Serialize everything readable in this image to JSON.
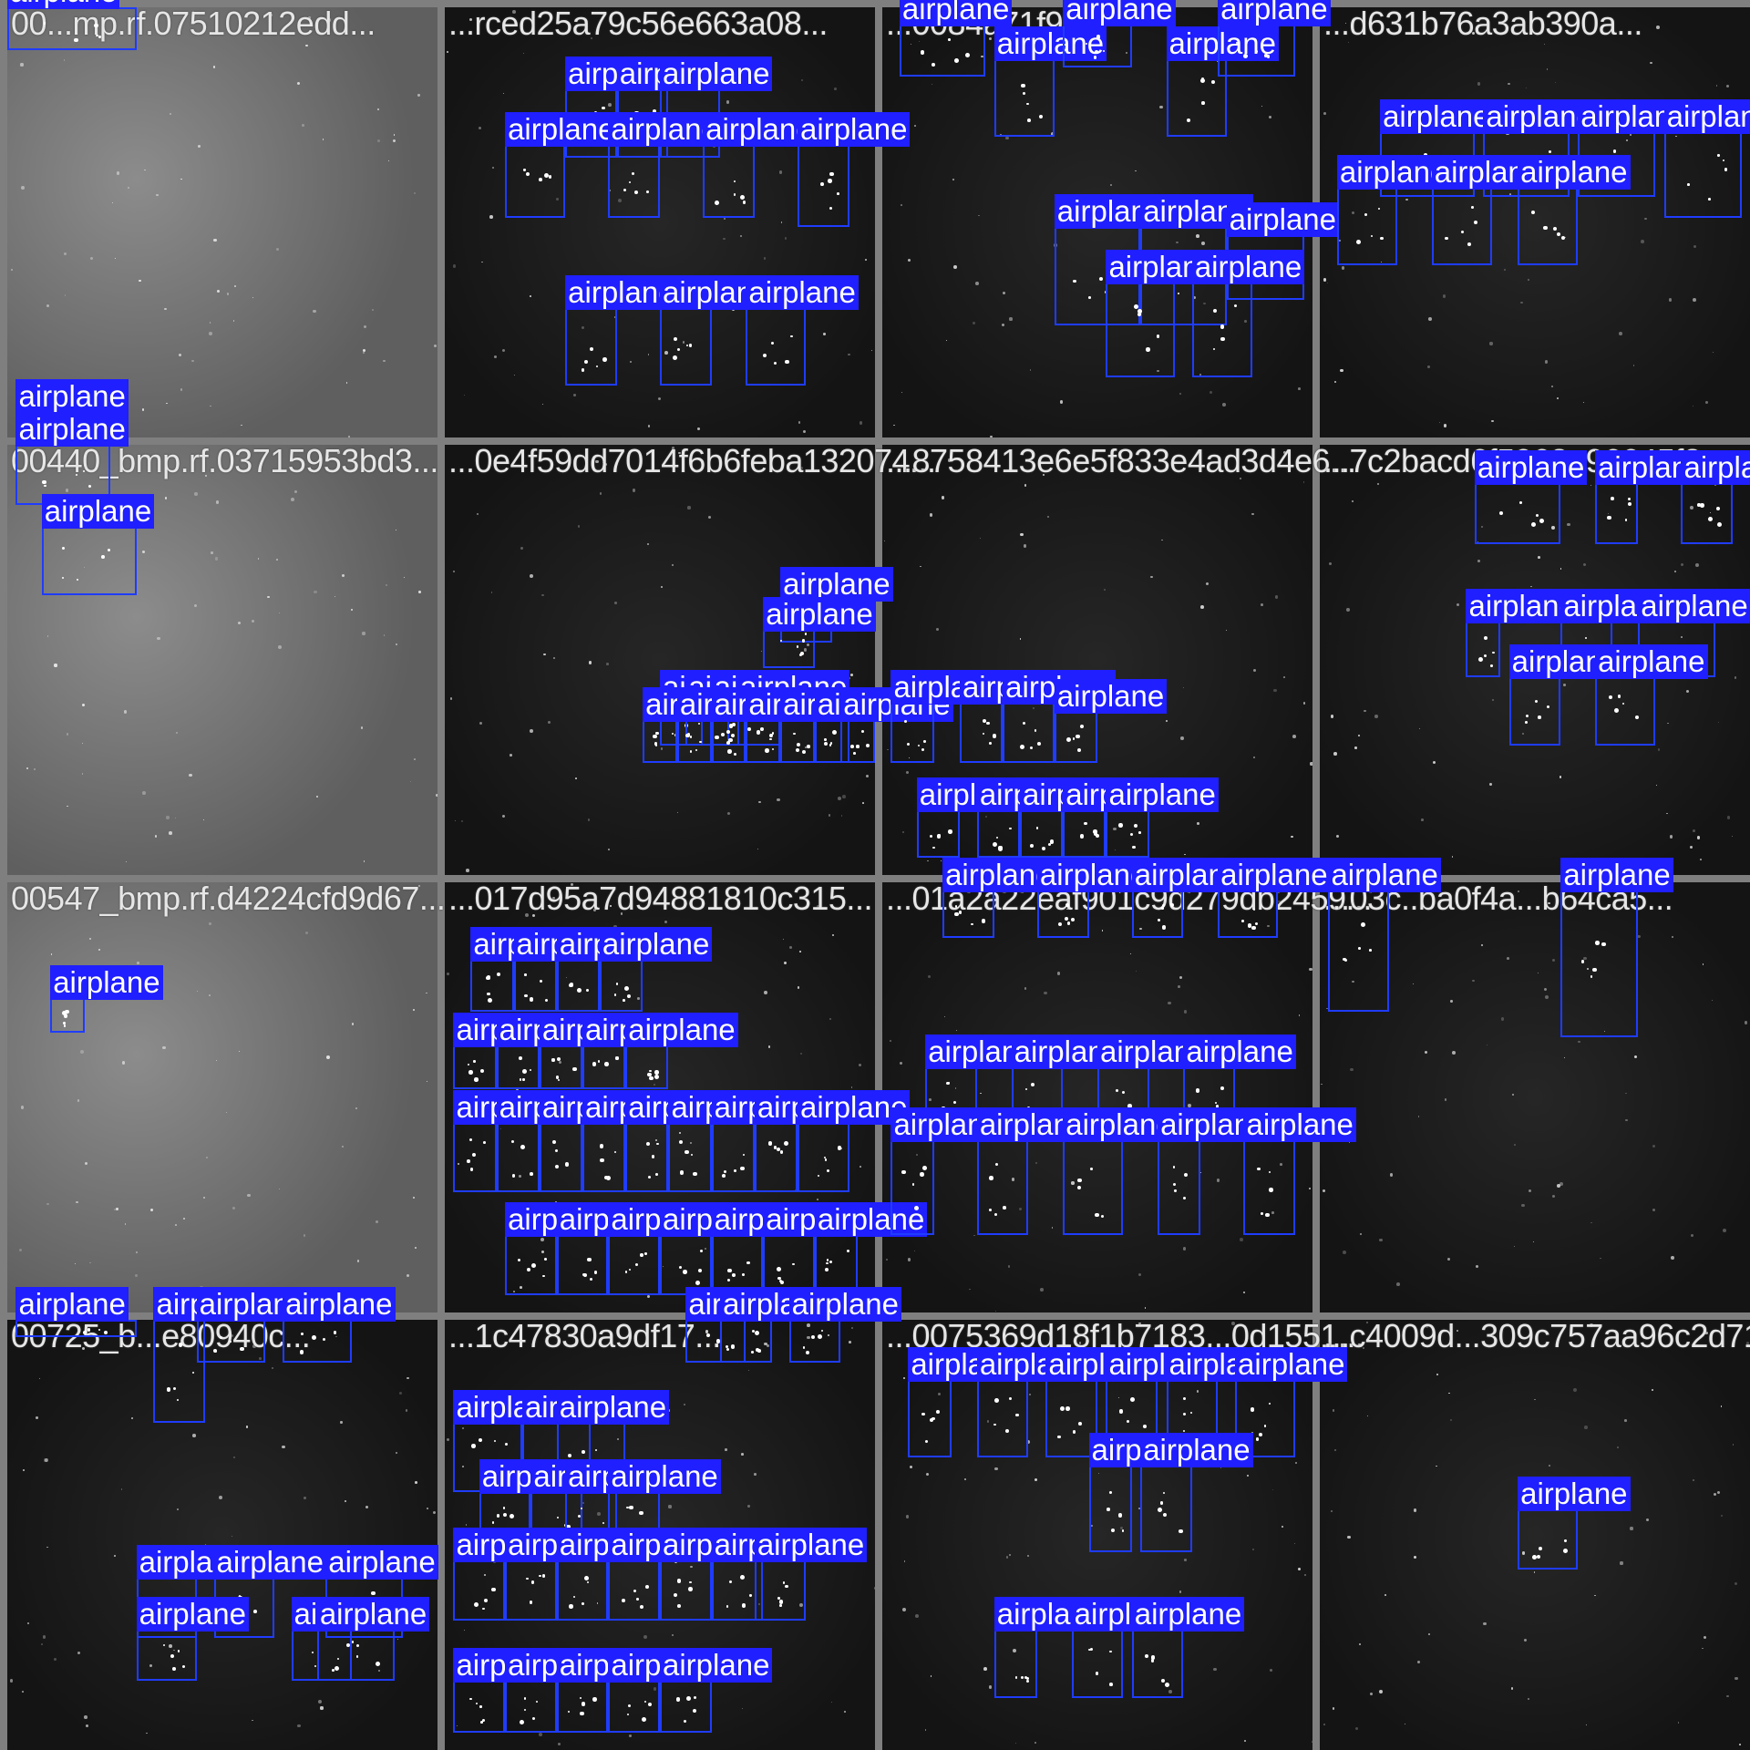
{
  "class_label": "airplane",
  "colors": {
    "box": "#1f3cff",
    "label_bg": "#1f1fff",
    "label_text": "#ffffff",
    "filename_text": "#e6e6e6",
    "grid_bg": "#7f7f7f"
  },
  "tiles": [
    {
      "filename": "00...mp.rf.07510212edd...",
      "tone": "light",
      "boxes": [
        [
          0,
          0,
          30,
          10
        ],
        [
          2,
          94,
          22,
          100
        ]
      ]
    },
    {
      "filename": "...rced25a79c56e663a08...",
      "tone": "dark",
      "boxes": [
        [
          28,
          19,
          40,
          35
        ],
        [
          40,
          19,
          52,
          35
        ],
        [
          50,
          19,
          64,
          35
        ],
        [
          14,
          32,
          28,
          49
        ],
        [
          38,
          32,
          50,
          49
        ],
        [
          60,
          32,
          72,
          49
        ],
        [
          82,
          32,
          94,
          51
        ],
        [
          28,
          70,
          40,
          88
        ],
        [
          50,
          70,
          62,
          88
        ],
        [
          70,
          70,
          84,
          88
        ]
      ]
    },
    {
      "filename": "...0084a71f9f...",
      "tone": "dark",
      "boxes": [
        [
          4,
          4,
          24,
          16
        ],
        [
          26,
          12,
          40,
          30
        ],
        [
          66,
          12,
          80,
          30
        ],
        [
          78,
          4,
          96,
          16
        ],
        [
          42,
          4,
          58,
          14
        ],
        [
          40,
          51,
          60,
          74
        ],
        [
          60,
          51,
          80,
          74
        ],
        [
          80,
          53,
          98,
          68
        ],
        [
          52,
          64,
          68,
          86
        ],
        [
          72,
          64,
          86,
          86
        ]
      ]
    },
    {
      "filename": "...d631b76a3ab390a...",
      "tone": "dark",
      "boxes": [
        [
          14,
          29,
          36,
          44
        ],
        [
          38,
          29,
          58,
          44
        ],
        [
          60,
          29,
          78,
          44
        ],
        [
          80,
          29,
          98,
          49
        ],
        [
          4,
          42,
          18,
          60
        ],
        [
          26,
          42,
          40,
          60
        ],
        [
          46,
          42,
          60,
          60
        ]
      ]
    },
    {
      "filename": "00440_bmp.rf.03715953bd3...",
      "tone": "light",
      "boxes": [
        [
          2,
          0,
          24,
          14
        ],
        [
          8,
          19,
          30,
          35
        ]
      ]
    },
    {
      "filename": "...0e4f59dd7014f6b6feba132074...",
      "tone": "dark",
      "boxes": [
        [
          78,
          36,
          90,
          46
        ],
        [
          74,
          43,
          86,
          52
        ],
        [
          50,
          60,
          60,
          70
        ],
        [
          56,
          60,
          66,
          70
        ],
        [
          62,
          60,
          70,
          70
        ],
        [
          68,
          60,
          78,
          70
        ],
        [
          46,
          64,
          54,
          74
        ],
        [
          54,
          64,
          62,
          74
        ],
        [
          62,
          64,
          70,
          74
        ],
        [
          70,
          64,
          78,
          74
        ],
        [
          78,
          64,
          86,
          74
        ],
        [
          86,
          64,
          94,
          74
        ],
        [
          92,
          64,
          100,
          74
        ]
      ]
    },
    {
      "filename": "...8758413e6e5f833e4ad3d4e6...",
      "tone": "dark",
      "boxes": [
        [
          2,
          60,
          12,
          74
        ],
        [
          18,
          60,
          28,
          74
        ],
        [
          28,
          60,
          40,
          74
        ],
        [
          40,
          62,
          50,
          74
        ],
        [
          8,
          85,
          18,
          96
        ],
        [
          22,
          85,
          32,
          96
        ],
        [
          32,
          85,
          42,
          96
        ],
        [
          42,
          85,
          52,
          96
        ],
        [
          52,
          85,
          62,
          96
        ]
      ]
    },
    {
      "filename": "...7c2bacd6f5963a96645f3...",
      "tone": "dark",
      "boxes": [
        [
          36,
          9,
          56,
          23
        ],
        [
          64,
          9,
          74,
          23
        ],
        [
          84,
          9,
          96,
          23
        ],
        [
          34,
          41,
          42,
          54
        ],
        [
          56,
          41,
          68,
          54
        ],
        [
          74,
          41,
          92,
          54
        ],
        [
          44,
          54,
          56,
          70
        ],
        [
          64,
          54,
          78,
          70
        ]
      ]
    },
    {
      "filename": "00547_bmp.rf.d4224cfd9d67...",
      "tone": "light",
      "boxes": [
        [
          10,
          27,
          18,
          35
        ]
      ]
    },
    {
      "filename": "...017d95a7d94881810c315...",
      "tone": "dark",
      "boxes": [
        [
          6,
          18,
          16,
          30
        ],
        [
          16,
          18,
          26,
          30
        ],
        [
          26,
          18,
          36,
          30
        ],
        [
          36,
          18,
          46,
          30
        ],
        [
          2,
          38,
          12,
          48
        ],
        [
          12,
          38,
          22,
          48
        ],
        [
          22,
          38,
          32,
          48
        ],
        [
          32,
          38,
          42,
          48
        ],
        [
          42,
          38,
          52,
          48
        ],
        [
          2,
          56,
          12,
          72
        ],
        [
          12,
          56,
          22,
          72
        ],
        [
          22,
          56,
          32,
          72
        ],
        [
          32,
          56,
          42,
          72
        ],
        [
          42,
          56,
          52,
          72
        ],
        [
          52,
          56,
          62,
          72
        ],
        [
          62,
          56,
          72,
          72
        ],
        [
          72,
          56,
          82,
          72
        ],
        [
          82,
          56,
          94,
          72
        ],
        [
          14,
          82,
          26,
          96
        ],
        [
          26,
          82,
          38,
          96
        ],
        [
          38,
          82,
          50,
          96
        ],
        [
          50,
          82,
          62,
          96
        ],
        [
          62,
          82,
          74,
          96
        ],
        [
          74,
          82,
          86,
          96
        ],
        [
          86,
          82,
          96,
          96
        ]
      ]
    },
    {
      "filename": "...01a2a22eaf901c9d279db2459...",
      "tone": "dark",
      "boxes": [
        [
          14,
          2,
          26,
          13
        ],
        [
          36,
          2,
          48,
          13
        ],
        [
          58,
          2,
          70,
          13
        ],
        [
          78,
          2,
          92,
          13
        ],
        [
          10,
          43,
          22,
          58
        ],
        [
          30,
          43,
          42,
          58
        ],
        [
          50,
          43,
          62,
          58
        ],
        [
          70,
          43,
          82,
          58
        ],
        [
          2,
          60,
          12,
          82
        ],
        [
          22,
          60,
          34,
          82
        ],
        [
          42,
          60,
          56,
          82
        ],
        [
          64,
          60,
          74,
          82
        ],
        [
          84,
          60,
          96,
          82
        ]
      ]
    },
    {
      "filename": "...03c..ba0f4a...b64ca5...",
      "tone": "dark",
      "boxes": [
        [
          2,
          2,
          16,
          30
        ],
        [
          56,
          2,
          74,
          36
        ]
      ]
    },
    {
      "filename": "00725_b...e80940c...",
      "tone": "dark",
      "boxes": [
        [
          34,
          0,
          46,
          24
        ],
        [
          44,
          0,
          60,
          10
        ],
        [
          64,
          0,
          80,
          10
        ],
        [
          2,
          0,
          30,
          4
        ],
        [
          30,
          60,
          44,
          74
        ],
        [
          48,
          60,
          62,
          74
        ],
        [
          74,
          60,
          92,
          74
        ],
        [
          30,
          72,
          44,
          84
        ],
        [
          66,
          72,
          80,
          84
        ],
        [
          72,
          72,
          90,
          84
        ]
      ]
    },
    {
      "filename": "...1c47830a9df17...",
      "tone": "dark",
      "boxes": [
        [
          2,
          24,
          18,
          40
        ],
        [
          18,
          24,
          34,
          40
        ],
        [
          26,
          24,
          42,
          40
        ],
        [
          8,
          40,
          20,
          54
        ],
        [
          20,
          40,
          32,
          54
        ],
        [
          28,
          40,
          40,
          54
        ],
        [
          38,
          40,
          50,
          54
        ],
        [
          2,
          56,
          14,
          70
        ],
        [
          14,
          56,
          26,
          70
        ],
        [
          26,
          56,
          38,
          70
        ],
        [
          38,
          56,
          50,
          70
        ],
        [
          50,
          56,
          62,
          70
        ],
        [
          62,
          56,
          74,
          70
        ],
        [
          72,
          56,
          84,
          70
        ],
        [
          56,
          0,
          70,
          10
        ],
        [
          64,
          0,
          76,
          10
        ],
        [
          80,
          0,
          92,
          10
        ],
        [
          2,
          84,
          14,
          96
        ],
        [
          14,
          84,
          26,
          96
        ],
        [
          26,
          84,
          38,
          96
        ],
        [
          38,
          84,
          50,
          96
        ],
        [
          50,
          84,
          62,
          96
        ]
      ]
    },
    {
      "filename": "...0075369d18f1b7183...0d1551...",
      "tone": "dark",
      "boxes": [
        [
          6,
          14,
          16,
          32
        ],
        [
          22,
          14,
          34,
          32
        ],
        [
          38,
          14,
          50,
          32
        ],
        [
          52,
          14,
          64,
          32
        ],
        [
          66,
          14,
          78,
          32
        ],
        [
          82,
          14,
          96,
          32
        ],
        [
          48,
          34,
          58,
          54
        ],
        [
          60,
          34,
          72,
          54
        ],
        [
          26,
          72,
          36,
          88
        ],
        [
          44,
          72,
          56,
          88
        ],
        [
          58,
          72,
          70,
          88
        ]
      ]
    },
    {
      "filename": "...c4009d...309c757aa96c2d71...",
      "tone": "dark",
      "boxes": [
        [
          46,
          44,
          60,
          58
        ]
      ]
    }
  ]
}
